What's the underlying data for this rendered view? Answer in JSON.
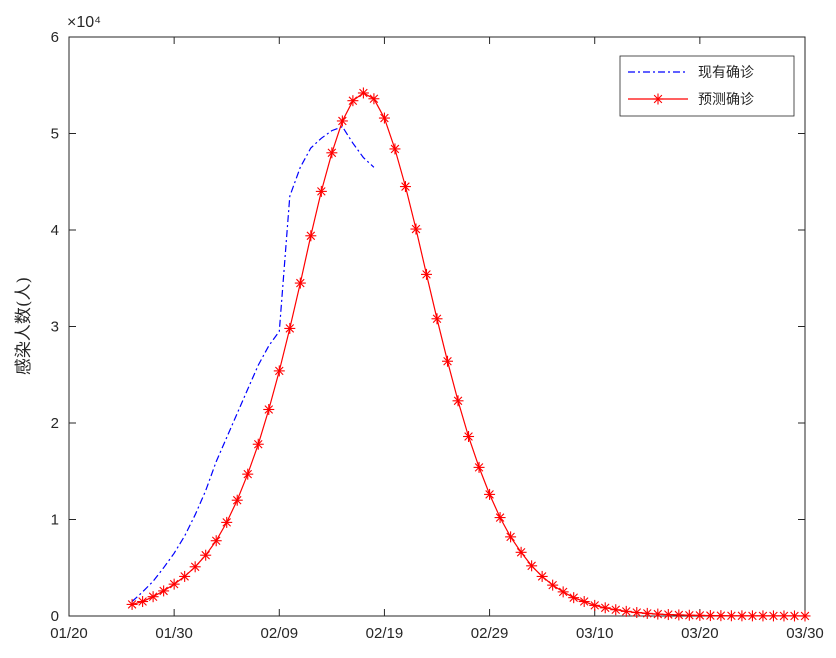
{
  "chart_data": {
    "type": "line",
    "title": "",
    "xlabel": "",
    "ylabel": "感染人数(人)",
    "y_exponent_label": "×10⁴",
    "x_tick_labels": [
      "01/20",
      "01/30",
      "02/09",
      "02/19",
      "02/29",
      "03/10",
      "03/20",
      "03/30"
    ],
    "y_tick_labels": [
      "0",
      "1",
      "2",
      "3",
      "4",
      "5",
      "6"
    ],
    "x_range_days": [
      0,
      70
    ],
    "ylim": [
      0,
      60000
    ],
    "grid": false,
    "legend_position": "top-right",
    "series": [
      {
        "name": "现有确诊",
        "style": "dash-dot",
        "color": "#0000ff",
        "x": [
          6,
          7,
          8,
          9,
          10,
          11,
          12,
          13,
          14,
          15,
          16,
          17,
          18,
          19,
          20,
          21,
          22,
          23,
          24,
          25,
          26,
          27,
          28,
          29,
          30,
          31,
          32
        ],
        "y": [
          1500,
          2500,
          3600,
          5000,
          6500,
          8300,
          10500,
          13000,
          16000,
          18500,
          21000,
          23500,
          26000,
          28000,
          29500,
          43500,
          46500,
          48500,
          49500,
          50300,
          50700,
          49000,
          47500,
          46500,
          null,
          null,
          null
        ]
      },
      {
        "name": "预测确诊",
        "style": "solid-star",
        "color": "#ff0000",
        "x": [
          6,
          7,
          8,
          9,
          10,
          11,
          12,
          13,
          14,
          15,
          16,
          17,
          18,
          19,
          20,
          21,
          22,
          23,
          24,
          25,
          26,
          27,
          28,
          29,
          30,
          31,
          32,
          33,
          34,
          35,
          36,
          37,
          38,
          39,
          40,
          41,
          42,
          43,
          44,
          45,
          46,
          47,
          48,
          49,
          50,
          51,
          52,
          53,
          54,
          55,
          56,
          57,
          58,
          59,
          60,
          61,
          62,
          63,
          64,
          65,
          66,
          67,
          68,
          69,
          70
        ],
        "y": [
          1200,
          1500,
          2000,
          2600,
          3300,
          4100,
          5100,
          6300,
          7800,
          9700,
          12000,
          14700,
          17800,
          21400,
          25400,
          29800,
          34500,
          39400,
          44000,
          48000,
          51300,
          53400,
          54200,
          53600,
          51600,
          48400,
          44500,
          40100,
          35400,
          30800,
          26400,
          22300,
          18600,
          15400,
          12600,
          10200,
          8200,
          6600,
          5200,
          4100,
          3200,
          2500,
          1900,
          1500,
          1100,
          850,
          650,
          480,
          360,
          270,
          200,
          150,
          110,
          80,
          60,
          45,
          35,
          25,
          20,
          15,
          12,
          10,
          8,
          6,
          5
        ]
      }
    ]
  }
}
